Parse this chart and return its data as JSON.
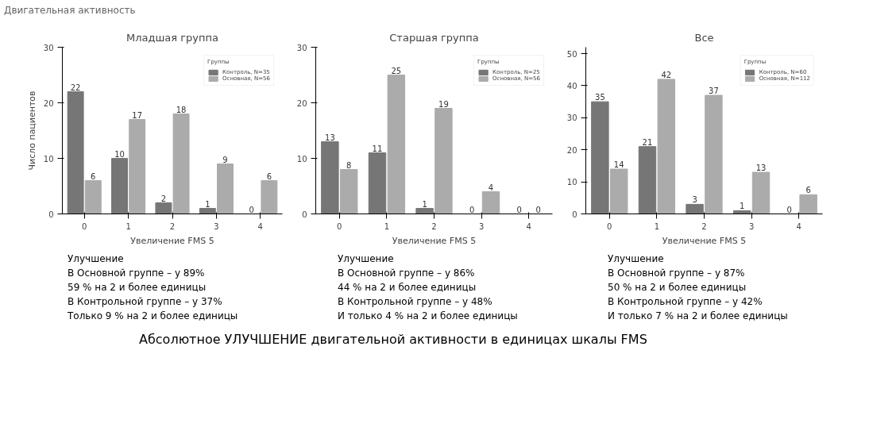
{
  "chart_data": [
    {
      "type": "bar",
      "title": "Младшая группа",
      "xlabel": "Увеличение FMS 5",
      "ylabel": "Число пациентов",
      "x": [
        0,
        1,
        2,
        3,
        4
      ],
      "xlim": [
        -0.5,
        4.5
      ],
      "xticks": [
        0,
        1,
        2,
        3,
        4
      ],
      "ylim": [
        0,
        30
      ],
      "yticks": [
        0,
        10,
        20,
        30
      ],
      "legend_title": "Группы",
      "legend": "top right",
      "grid": false,
      "data_labels": true,
      "series": [
        {
          "name": "Контроль, N=35",
          "color": "#767676",
          "values": [
            22,
            10,
            2,
            1,
            0
          ]
        },
        {
          "name": "Основная, N=56",
          "color": "#ababab",
          "values": [
            6,
            17,
            18,
            9,
            6
          ]
        }
      ],
      "annotations": [
        "Улучшение",
        "В Основной группе – у 89%",
        "59 % на 2 и более единицы",
        "В Контрольной группе – у 37%",
        "Только 9 % на 2 и более единицы"
      ]
    },
    {
      "type": "bar",
      "title": "Старшая группа",
      "xlabel": "Увеличение FMS 5",
      "x": [
        0,
        1,
        2,
        3,
        4
      ],
      "xlim": [
        -0.5,
        4.5
      ],
      "xticks": [
        0,
        1,
        2,
        3,
        4
      ],
      "ylim": [
        0,
        30
      ],
      "yticks": [
        0,
        10,
        20,
        30
      ],
      "legend_title": "Группы",
      "legend": "top right",
      "grid": false,
      "data_labels": true,
      "series": [
        {
          "name": "Контроль, N=25",
          "color": "#767676",
          "values": [
            13,
            11,
            1,
            0,
            0
          ]
        },
        {
          "name": "Основная, N=56",
          "color": "#ababab",
          "values": [
            8,
            25,
            19,
            4,
            0
          ]
        }
      ],
      "annotations": [
        "Улучшение",
        "В Основной группе – у 86%",
        "44 % на 2 и более единицы",
        "В Контрольной группе – у 48%",
        "И только 4 % на 2 и более единицы"
      ]
    },
    {
      "type": "bar",
      "title": "Все",
      "xlabel": "Увеличение FMS 5",
      "x": [
        0,
        1,
        2,
        3,
        4
      ],
      "xlim": [
        -0.5,
        4.5
      ],
      "xticks": [
        0,
        1,
        2,
        3,
        4
      ],
      "ylim": [
        0,
        52
      ],
      "yticks": [
        0,
        10,
        20,
        30,
        40,
        50
      ],
      "legend_title": "Группы",
      "legend": "top right",
      "grid": false,
      "data_labels": true,
      "series": [
        {
          "name": "Контроль, N=60",
          "color": "#767676",
          "values": [
            35,
            21,
            3,
            1,
            0
          ]
        },
        {
          "name": "Основная, N=112",
          "color": "#ababab",
          "values": [
            14,
            42,
            37,
            13,
            6
          ]
        }
      ],
      "annotations": [
        "Улучшение",
        "В Основной группе – у 87%",
        "50 % на 2 и более единицы",
        "В Контрольной группе – у 42%",
        "И только 7 % на 2 и более единицы"
      ]
    },
    {
      "type": "other",
      "title": "Двигательная активность",
      "annotations": [
        "Абсолютное УЛУЧШЕНИЕ двигательной активности в единицах шкалы FMS"
      ]
    }
  ]
}
